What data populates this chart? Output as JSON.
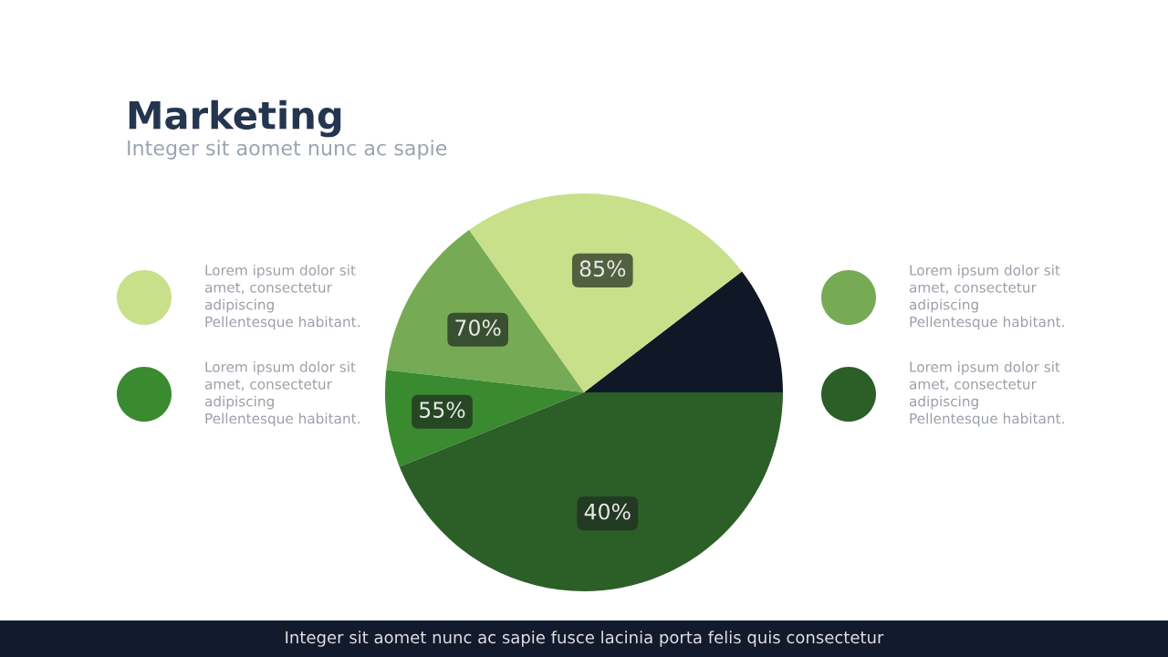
{
  "chart_data": {
    "type": "pie",
    "title": "Marketing",
    "subtitle": "Integer sit aomet nunc ac sapie",
    "categories": [
      null,
      null,
      null,
      null,
      null
    ],
    "values": [
      10.4,
      24.4,
      13.4,
      7.9,
      43.9
    ],
    "colors": [
      "#101828",
      "#c8e08a",
      "#77aa55",
      "#3a8a30",
      "#2c5e28"
    ],
    "annotations": [
      "Integer sit aomet nunc ac sapie fusce lacinia porta felis quis consectetur",
      "85%",
      "70%",
      "55%",
      "40%",
      "Lorem ipsum dolor sit\namet, consectetur\nadipiscing\nPellentesque habitant.",
      "Lorem ipsum dolor sit\namet, consectetur\nadipiscing\nPellentesque habitant.",
      "Lorem ipsum dolor sit\namet, consectetur\nadipiscing\nPellentesque habitant.",
      "Lorem ipsum dolor sit\namet, consectetur\nadipiscing\nPellentesque habitant."
    ]
  }
}
